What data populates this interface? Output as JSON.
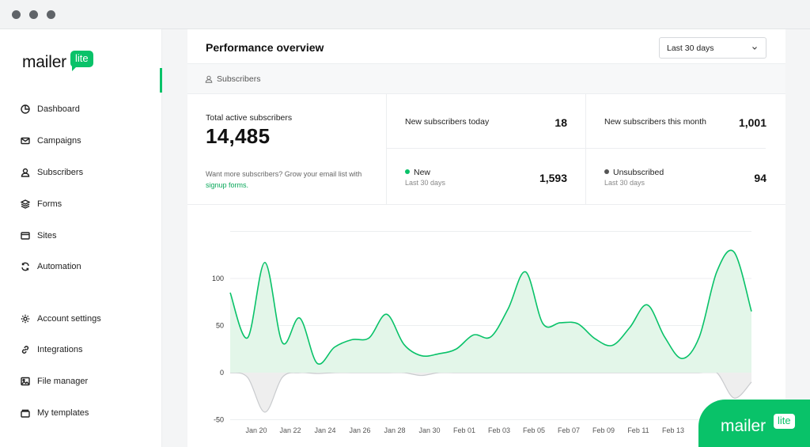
{
  "sidebar": {
    "logo_text": "mailer",
    "logo_badge": "lite",
    "items": [
      {
        "label": "Dashboard",
        "icon": "dashboard-icon"
      },
      {
        "label": "Campaigns",
        "icon": "mail-icon"
      },
      {
        "label": "Subscribers",
        "icon": "user-icon"
      },
      {
        "label": "Forms",
        "icon": "layers-icon"
      },
      {
        "label": "Sites",
        "icon": "browser-icon"
      },
      {
        "label": "Automation",
        "icon": "refresh-icon"
      },
      {
        "label": "Account settings",
        "icon": "gear-icon"
      },
      {
        "label": "Integrations",
        "icon": "link-icon"
      },
      {
        "label": "File manager",
        "icon": "image-icon"
      },
      {
        "label": "My templates",
        "icon": "template-icon"
      }
    ]
  },
  "header": {
    "title": "Performance overview",
    "range_value": "Last 30 days"
  },
  "subtab": {
    "label": "Subscribers"
  },
  "stats": {
    "total_label": "Total active subscribers",
    "total_value": "14,485",
    "promo_text": "Want more subscribers? Grow your email list with",
    "promo_link": "signup forms.",
    "today_label": "New subscribers today",
    "today_value": "18",
    "month_label": "New subscribers this month",
    "month_value": "1,001",
    "new_label": "New",
    "new_sub": "Last 30 days",
    "new_value": "1,593",
    "unsub_label": "Unsubscribed",
    "unsub_sub": "Last 30 days",
    "unsub_value": "94"
  },
  "colors": {
    "accent": "#09c269",
    "new_dot": "#09c269",
    "unsub_dot": "#555555",
    "area_fill": "#e3f6e9",
    "negative_fill": "#eeeeee"
  },
  "chart_data": {
    "type": "area",
    "ylim": [
      -50,
      150
    ],
    "yticks": [
      100,
      50,
      0,
      -50
    ],
    "xticks": [
      "Jan 20",
      "Jan 22",
      "Jan 24",
      "Jan 26",
      "Jan 28",
      "Jan 30",
      "Feb 01",
      "Feb 03",
      "Feb 05",
      "Feb 07",
      "Feb 09",
      "Feb 11",
      "Feb 13"
    ],
    "series": [
      {
        "values": [
          85,
          37,
          117,
          32,
          58,
          10,
          27,
          35,
          37,
          62,
          30,
          18,
          20,
          25,
          40,
          38,
          68,
          107,
          52,
          53,
          52,
          36,
          29,
          48,
          72,
          38,
          15,
          38,
          107,
          128,
          65
        ]
      },
      {
        "values": [
          0,
          -5,
          -42,
          -5,
          0,
          -1,
          0,
          0,
          0,
          0,
          0,
          -3,
          0,
          0,
          0,
          0,
          0,
          0,
          0,
          0,
          0,
          0,
          0,
          0,
          0,
          0,
          0,
          0,
          0,
          -27,
          -10
        ]
      }
    ]
  },
  "brand": {
    "text": "mailer",
    "badge": "lite"
  }
}
